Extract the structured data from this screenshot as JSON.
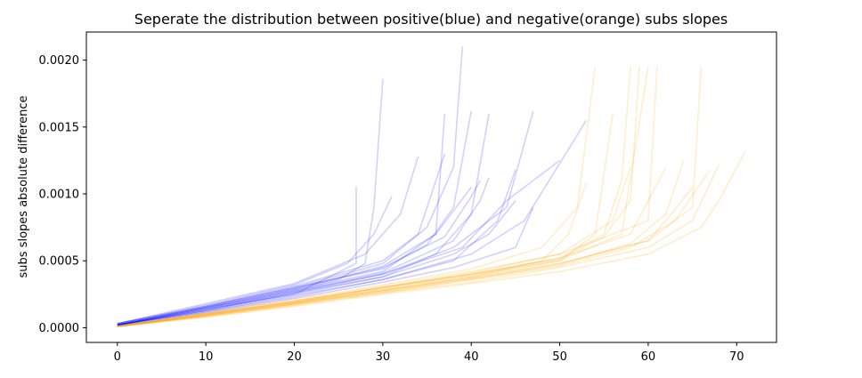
{
  "chart_data": {
    "type": "line",
    "title": "Seperate the distribution between positive(blue) and negative(orange) subs slopes",
    "xlabel": "",
    "ylabel": "subs slopes absolute difference",
    "xlim": [
      -3.5,
      74.5
    ],
    "ylim": [
      -0.00011,
      0.00221
    ],
    "xticks": [
      0,
      10,
      20,
      30,
      40,
      50,
      60,
      70
    ],
    "xtick_labels": [
      "0",
      "10",
      "20",
      "30",
      "40",
      "50",
      "60",
      "70"
    ],
    "yticks": [
      0.0,
      0.0005,
      0.001,
      0.0015,
      0.002
    ],
    "ytick_labels": [
      "0.0000",
      "0.0005",
      "0.0010",
      "0.0015",
      "0.0020"
    ],
    "grid": false,
    "legend": "none",
    "series": [
      {
        "color": "#0000ff",
        "alpha": 0.18,
        "values": [
          [
            0,
            3e-05
          ],
          [
            5,
            9e-05
          ],
          [
            10,
            0.00015
          ],
          [
            15,
            0.00021
          ],
          [
            20,
            0.00028
          ],
          [
            25,
            0.00036
          ],
          [
            28,
            0.00048
          ],
          [
            29,
            0.0009
          ],
          [
            30,
            0.00186
          ]
        ]
      },
      {
        "color": "#0000ff",
        "alpha": 0.18,
        "values": [
          [
            0,
            2e-05
          ],
          [
            10,
            0.00014
          ],
          [
            20,
            0.00025
          ],
          [
            27,
            0.00048
          ],
          [
            27,
            0.00105
          ]
        ]
      },
      {
        "color": "#0000ff",
        "alpha": 0.18,
        "values": [
          [
            0,
            2e-05
          ],
          [
            10,
            0.00016
          ],
          [
            20,
            0.0003
          ],
          [
            30,
            0.00048
          ],
          [
            35,
            0.00075
          ],
          [
            38,
            0.0012
          ],
          [
            39,
            0.0021
          ]
        ]
      },
      {
        "color": "#0000ff",
        "alpha": 0.18,
        "values": [
          [
            0,
            2e-05
          ],
          [
            10,
            0.00015
          ],
          [
            20,
            0.00028
          ],
          [
            30,
            0.00042
          ],
          [
            36,
            0.0007
          ],
          [
            37,
            0.0016
          ]
        ]
      },
      {
        "color": "#0000ff",
        "alpha": 0.18,
        "values": [
          [
            0,
            3e-05
          ],
          [
            10,
            0.00016
          ],
          [
            20,
            0.0003
          ],
          [
            30,
            0.00044
          ],
          [
            35,
            0.00062
          ],
          [
            38,
            0.0009
          ],
          [
            40,
            0.00162
          ]
        ]
      },
      {
        "color": "#0000ff",
        "alpha": 0.18,
        "values": [
          [
            0,
            2e-05
          ],
          [
            10,
            0.00013
          ],
          [
            20,
            0.00026
          ],
          [
            30,
            0.00038
          ],
          [
            36,
            0.00055
          ],
          [
            40,
            0.00085
          ],
          [
            42,
            0.0016
          ]
        ]
      },
      {
        "color": "#0000ff",
        "alpha": 0.18,
        "values": [
          [
            0,
            2e-05
          ],
          [
            10,
            0.00012
          ],
          [
            20,
            0.00024
          ],
          [
            30,
            0.00036
          ],
          [
            38,
            0.0005
          ],
          [
            43,
            0.0008
          ],
          [
            45,
            0.00118
          ]
        ]
      },
      {
        "color": "#0000ff",
        "alpha": 0.18,
        "values": [
          [
            0,
            2e-05
          ],
          [
            10,
            0.00013
          ],
          [
            20,
            0.00026
          ],
          [
            30,
            0.0004
          ],
          [
            38,
            0.0006
          ],
          [
            44,
            0.0009
          ],
          [
            47,
            0.00162
          ]
        ]
      },
      {
        "color": "#0000ff",
        "alpha": 0.18,
        "values": [
          [
            0,
            2e-05
          ],
          [
            10,
            0.00013
          ],
          [
            20,
            0.00025
          ],
          [
            30,
            0.00038
          ],
          [
            38,
            0.00055
          ],
          [
            42,
            0.0007
          ],
          [
            45,
            0.00095
          ]
        ]
      },
      {
        "color": "#0000ff",
        "alpha": 0.18,
        "values": [
          [
            0,
            2e-05
          ],
          [
            10,
            0.00011
          ],
          [
            20,
            0.00022
          ],
          [
            30,
            0.00034
          ],
          [
            38,
            0.00045
          ],
          [
            45,
            0.0006
          ],
          [
            47,
            0.0009
          ]
        ]
      },
      {
        "color": "#0000ff",
        "alpha": 0.18,
        "values": [
          [
            0,
            3e-05
          ],
          [
            10,
            0.00017
          ],
          [
            20,
            0.00032
          ],
          [
            26,
            0.00048
          ],
          [
            29,
            0.0007
          ],
          [
            31,
            0.00098
          ]
        ]
      },
      {
        "color": "#0000ff",
        "alpha": 0.18,
        "values": [
          [
            0,
            3e-05
          ],
          [
            10,
            0.00018
          ],
          [
            20,
            0.00033
          ],
          [
            28,
            0.00055
          ],
          [
            32,
            0.00085
          ],
          [
            34,
            0.00128
          ]
        ]
      },
      {
        "color": "#0000ff",
        "alpha": 0.18,
        "values": [
          [
            0,
            2e-05
          ],
          [
            10,
            0.00015
          ],
          [
            20,
            0.00029
          ],
          [
            30,
            0.00046
          ],
          [
            36,
            0.0007
          ],
          [
            40,
            0.00105
          ]
        ]
      },
      {
        "color": "#0000ff",
        "alpha": 0.18,
        "values": [
          [
            0,
            2e-05
          ],
          [
            10,
            0.00014
          ],
          [
            20,
            0.00027
          ],
          [
            30,
            0.00041
          ],
          [
            38,
            0.00065
          ],
          [
            41,
            0.00095
          ],
          [
            42,
            0.00112
          ]
        ]
      },
      {
        "color": "#0000ff",
        "alpha": 0.18,
        "values": [
          [
            0,
            2e-05
          ],
          [
            10,
            0.00014
          ],
          [
            20,
            0.00027
          ],
          [
            30,
            0.0004
          ],
          [
            39,
            0.0006
          ],
          [
            44,
            0.00095
          ],
          [
            50,
            0.00125
          ]
        ]
      },
      {
        "color": "#0000ff",
        "alpha": 0.18,
        "values": [
          [
            0,
            2e-05
          ],
          [
            10,
            0.00012
          ],
          [
            20,
            0.00023
          ],
          [
            30,
            0.00036
          ],
          [
            40,
            0.00055
          ],
          [
            46,
            0.0008
          ],
          [
            53,
            0.00155
          ]
        ]
      },
      {
        "color": "#0000ff",
        "alpha": 0.18,
        "values": [
          [
            0,
            3e-05
          ],
          [
            10,
            0.00016
          ],
          [
            20,
            0.00031
          ],
          [
            30,
            0.0005
          ],
          [
            34,
            0.0007
          ],
          [
            36,
            0.0011
          ],
          [
            37,
            0.0013
          ]
        ]
      },
      {
        "color": "#0000ff",
        "alpha": 0.18,
        "values": [
          [
            0,
            2e-05
          ],
          [
            10,
            0.00015
          ],
          [
            20,
            0.00029
          ],
          [
            30,
            0.00045
          ],
          [
            37,
            0.00068
          ],
          [
            40,
            0.00098
          ],
          [
            41,
            0.0011
          ]
        ]
      },
      {
        "color": "#ffa500",
        "alpha": 0.2,
        "values": [
          [
            0,
            1e-05
          ],
          [
            10,
            0.0001
          ],
          [
            20,
            0.0002
          ],
          [
            30,
            0.0003
          ],
          [
            40,
            0.0004
          ],
          [
            50,
            0.00052
          ],
          [
            55,
            0.0007
          ],
          [
            57,
            0.0011
          ],
          [
            58,
            0.00195
          ]
        ]
      },
      {
        "color": "#ffa500",
        "alpha": 0.2,
        "values": [
          [
            0,
            1e-05
          ],
          [
            10,
            9e-05
          ],
          [
            20,
            0.00018
          ],
          [
            30,
            0.00028
          ],
          [
            40,
            0.00037
          ],
          [
            50,
            0.00048
          ],
          [
            60,
            0.00065
          ],
          [
            65,
            0.0009
          ],
          [
            66,
            0.00195
          ]
        ]
      },
      {
        "color": "#ffa500",
        "alpha": 0.2,
        "values": [
          [
            0,
            1e-05
          ],
          [
            10,
            0.0001
          ],
          [
            20,
            0.00019
          ],
          [
            30,
            0.00029
          ],
          [
            40,
            0.00039
          ],
          [
            50,
            0.0005
          ],
          [
            54,
            0.0007
          ],
          [
            55,
            0.00115
          ],
          [
            56,
            0.0016
          ]
        ]
      },
      {
        "color": "#ffa500",
        "alpha": 0.2,
        "values": [
          [
            0,
            1e-05
          ],
          [
            10,
            0.00011
          ],
          [
            20,
            0.0002
          ],
          [
            30,
            0.00031
          ],
          [
            40,
            0.00042
          ],
          [
            50,
            0.00055
          ],
          [
            60,
            0.0008
          ],
          [
            61,
            0.00195
          ]
        ]
      },
      {
        "color": "#ffa500",
        "alpha": 0.2,
        "values": [
          [
            0,
            1e-05
          ],
          [
            10,
            0.0001
          ],
          [
            20,
            0.00019
          ],
          [
            30,
            0.0003
          ],
          [
            40,
            0.0004
          ],
          [
            50,
            0.00051
          ],
          [
            55,
            0.00068
          ],
          [
            58,
            0.00095
          ],
          [
            59,
            0.00195
          ]
        ]
      },
      {
        "color": "#ffa500",
        "alpha": 0.2,
        "values": [
          [
            0,
            1e-05
          ],
          [
            10,
            8e-05
          ],
          [
            20,
            0.00016
          ],
          [
            30,
            0.00025
          ],
          [
            40,
            0.00033
          ],
          [
            50,
            0.00042
          ],
          [
            60,
            0.00055
          ],
          [
            66,
            0.00075
          ],
          [
            68,
            0.00095
          ],
          [
            71,
            0.00132
          ]
        ]
      },
      {
        "color": "#ffa500",
        "alpha": 0.2,
        "values": [
          [
            0,
            1e-05
          ],
          [
            10,
            9e-05
          ],
          [
            20,
            0.00017
          ],
          [
            30,
            0.00026
          ],
          [
            40,
            0.00034
          ],
          [
            50,
            0.00045
          ],
          [
            60,
            0.0006
          ],
          [
            65,
            0.0008
          ],
          [
            68,
            0.00122
          ]
        ]
      },
      {
        "color": "#ffa500",
        "alpha": 0.2,
        "values": [
          [
            0,
            1e-05
          ],
          [
            10,
            0.0001
          ],
          [
            20,
            0.00019
          ],
          [
            30,
            0.00028
          ],
          [
            40,
            0.00038
          ],
          [
            48,
            0.0005
          ],
          [
            51,
            0.0007
          ],
          [
            53,
            0.00108
          ]
        ]
      },
      {
        "color": "#ffa500",
        "alpha": 0.2,
        "values": [
          [
            0,
            1e-05
          ],
          [
            10,
            0.00011
          ],
          [
            20,
            0.00021
          ],
          [
            30,
            0.00032
          ],
          [
            40,
            0.00044
          ],
          [
            48,
            0.0006
          ],
          [
            52,
            0.0009
          ],
          [
            54,
            0.00195
          ]
        ]
      },
      {
        "color": "#ffa500",
        "alpha": 0.2,
        "values": [
          [
            0,
            1e-05
          ],
          [
            10,
            9e-05
          ],
          [
            20,
            0.00018
          ],
          [
            30,
            0.00027
          ],
          [
            40,
            0.00036
          ],
          [
            50,
            0.00047
          ],
          [
            58,
            0.00063
          ],
          [
            62,
            0.00085
          ],
          [
            64,
            0.00125
          ]
        ]
      },
      {
        "color": "#ffa500",
        "alpha": 0.2,
        "values": [
          [
            0,
            1e-05
          ],
          [
            10,
            9e-05
          ],
          [
            20,
            0.00018
          ],
          [
            30,
            0.00028
          ],
          [
            40,
            0.00038
          ],
          [
            50,
            0.0005
          ],
          [
            57,
            0.0007
          ],
          [
            60,
            0.00195
          ]
        ]
      },
      {
        "color": "#ffa500",
        "alpha": 0.2,
        "values": [
          [
            0,
            1e-05
          ],
          [
            10,
            0.0001
          ],
          [
            20,
            0.0002
          ],
          [
            30,
            0.0003
          ],
          [
            40,
            0.00041
          ],
          [
            50,
            0.00055
          ],
          [
            56,
            0.0008
          ],
          [
            58,
            0.0012
          ]
        ]
      },
      {
        "color": "#ffa500",
        "alpha": 0.2,
        "values": [
          [
            0,
            1e-05
          ],
          [
            10,
            8e-05
          ],
          [
            20,
            0.00017
          ],
          [
            30,
            0.00026
          ],
          [
            40,
            0.00036
          ],
          [
            50,
            0.00046
          ],
          [
            58,
            0.0006
          ],
          [
            63,
            0.0008
          ],
          [
            67,
            0.00118
          ]
        ]
      },
      {
        "color": "#ffa500",
        "alpha": 0.2,
        "values": [
          [
            0,
            1e-05
          ],
          [
            10,
            0.0001
          ],
          [
            20,
            0.00019
          ],
          [
            30,
            0.0003
          ],
          [
            40,
            0.0004
          ],
          [
            50,
            0.00052
          ],
          [
            58,
            0.0007
          ],
          [
            62,
            0.0012
          ]
        ]
      },
      {
        "color": "#ffa500",
        "alpha": 0.2,
        "values": [
          [
            0,
            1e-05
          ],
          [
            10,
            9e-05
          ],
          [
            20,
            0.00018
          ],
          [
            30,
            0.00027
          ],
          [
            40,
            0.00037
          ],
          [
            50,
            0.00048
          ],
          [
            60,
            0.00065
          ],
          [
            63,
            0.00088
          ],
          [
            65,
            0.00105
          ]
        ]
      }
    ]
  }
}
